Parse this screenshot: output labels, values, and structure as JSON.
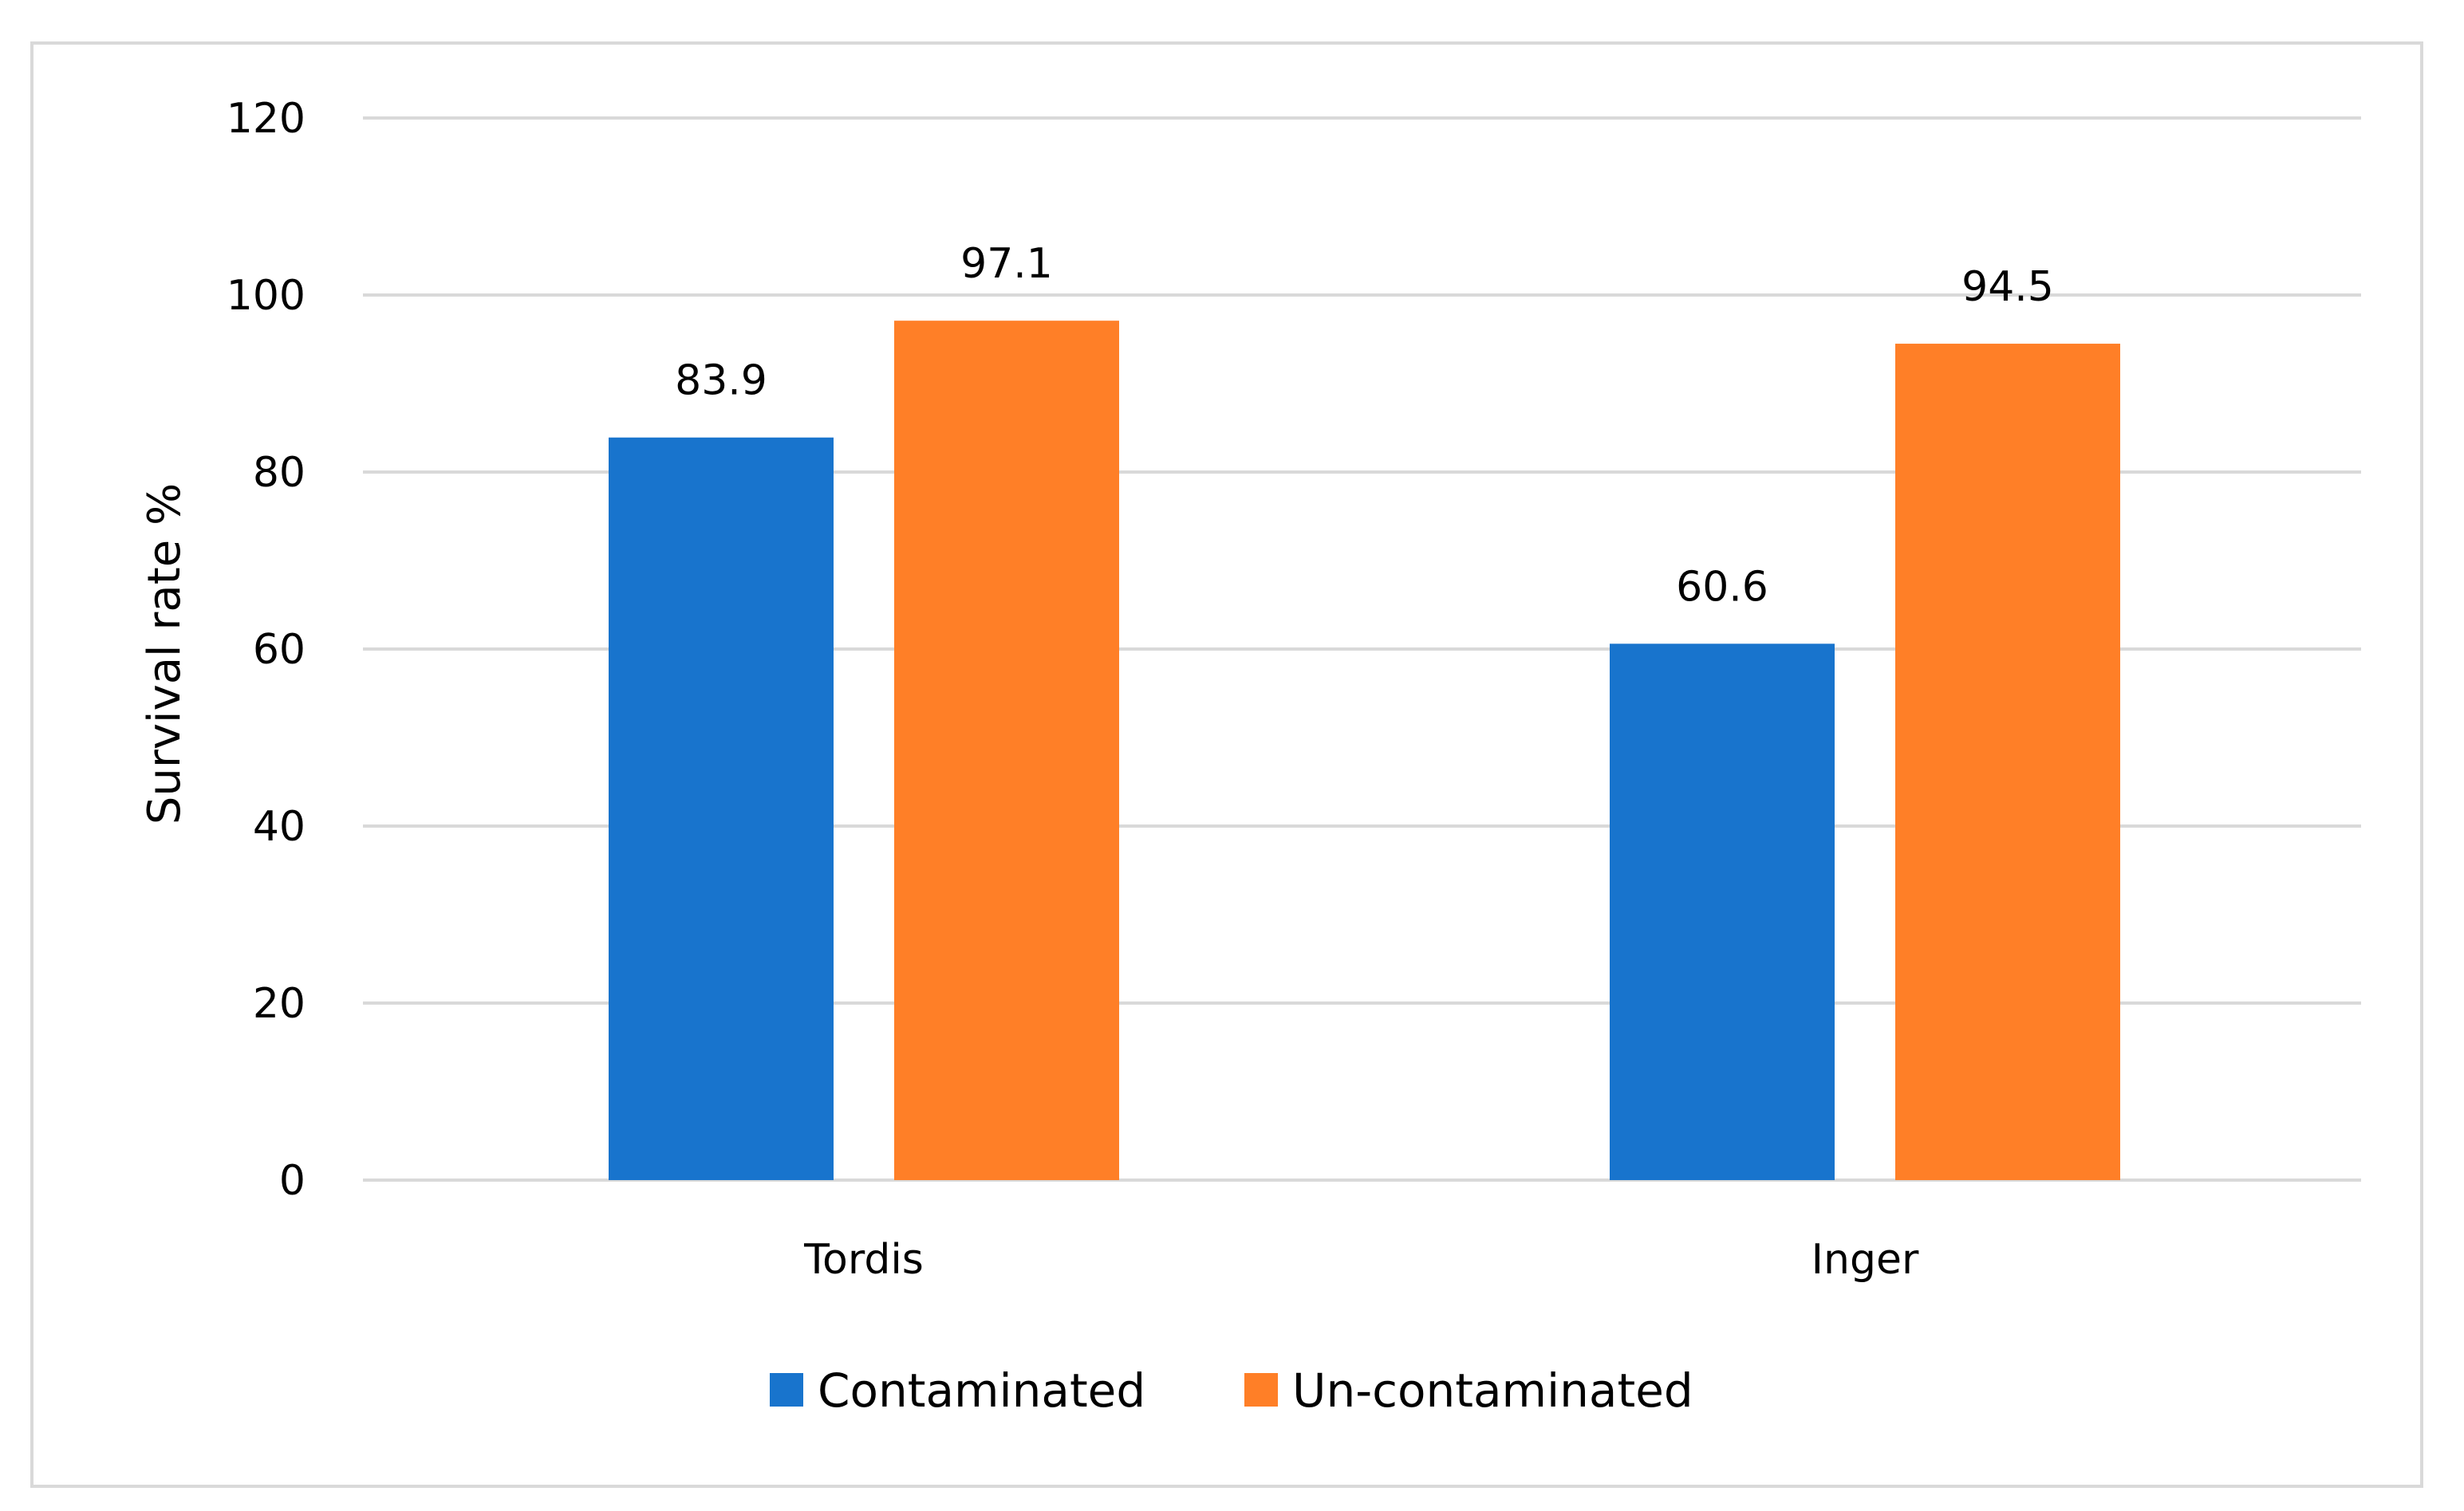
{
  "chart_data": {
    "type": "bar",
    "title": "",
    "xlabel": "",
    "ylabel": "Survival rate %",
    "categories": [
      "Tordis",
      "Inger"
    ],
    "series": [
      {
        "name": "Contaminated",
        "values": [
          83.9,
          60.6
        ],
        "value_labels": [
          "83.9",
          "60.6"
        ],
        "color": "#1874CD"
      },
      {
        "name": "Un-contaminated",
        "values": [
          97.1,
          94.5
        ],
        "value_labels": [
          "97.1",
          "94.5"
        ],
        "color": "#FF7F27"
      }
    ],
    "ylim": [
      0,
      120
    ],
    "yticks": [
      0,
      20,
      40,
      60,
      80,
      100,
      120
    ],
    "ytick_labels": [
      "0",
      "20",
      "40",
      "60",
      "80",
      "100",
      "120"
    ],
    "grid": true,
    "legend_position": "bottom"
  },
  "colors": {
    "gridline": "#d9d9d9",
    "frame": "#d9d9d9"
  }
}
